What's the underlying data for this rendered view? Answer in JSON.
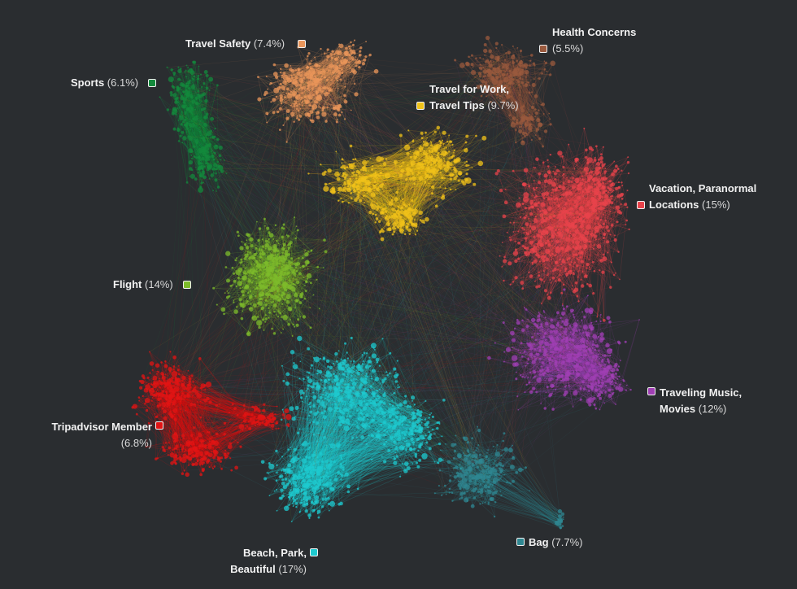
{
  "clusters": [
    {
      "id": "sports",
      "lines": [
        "Sports"
      ],
      "pct": "(6.1%)",
      "color": "#138a3c"
    },
    {
      "id": "travel-safety",
      "lines": [
        "Travel Safety"
      ],
      "pct": "(7.4%)",
      "color": "#e9955a"
    },
    {
      "id": "health-concerns",
      "lines": [
        "Health Concerns"
      ],
      "pct": "(5.5%)",
      "color": "#9a5a3e"
    },
    {
      "id": "travel-work",
      "lines": [
        "Travel for Work,",
        "Travel Tips"
      ],
      "pct": "(9.7%)",
      "color": "#f0c219"
    },
    {
      "id": "vacation",
      "lines": [
        "Vacation, Paranormal",
        "Locations"
      ],
      "pct": "(15%)",
      "color": "#e8434b"
    },
    {
      "id": "flight",
      "lines": [
        "Flight"
      ],
      "pct": "(14%)",
      "color": "#7dbb2b"
    },
    {
      "id": "traveling-music",
      "lines": [
        "Traveling Music,",
        "Movies"
      ],
      "pct": "(12%)",
      "color": "#a03fb4"
    },
    {
      "id": "tripadvisor",
      "lines": [
        "Tripadvisor Member"
      ],
      "pct": "(6.8%)",
      "color": "#e11414"
    },
    {
      "id": "bag",
      "lines": [
        "Bag"
      ],
      "pct": "(7.7%)",
      "color": "#2f8791"
    },
    {
      "id": "beach",
      "lines": [
        "Beach, Park,",
        "Beautiful"
      ],
      "pct": "(17%)",
      "color": "#1ec9cf"
    }
  ]
}
